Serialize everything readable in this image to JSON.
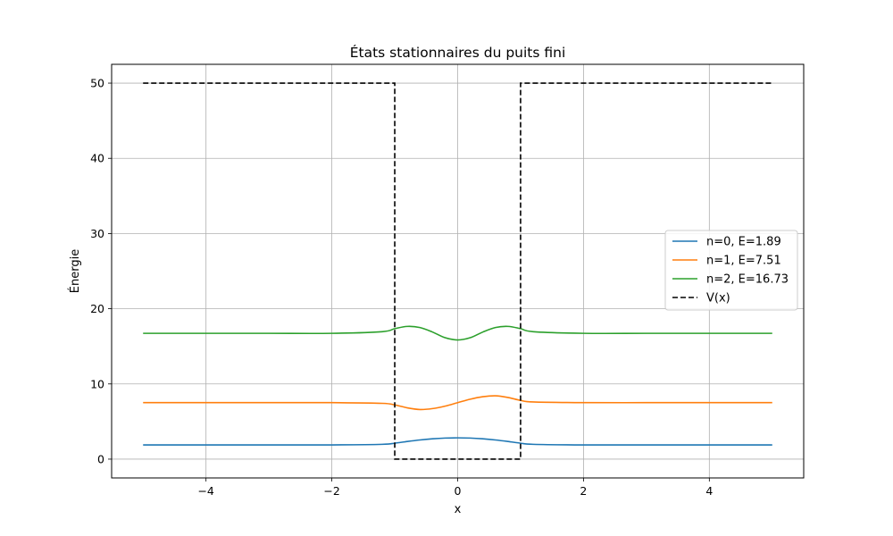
{
  "chart_data": {
    "type": "line",
    "title": "États stationnaires du puits fini",
    "xlabel": "x",
    "ylabel": "Énergie",
    "xlim": [
      -5.5,
      5.5
    ],
    "ylim": [
      -2.5,
      52.5
    ],
    "xticks": [
      -4,
      -2,
      0,
      2,
      4
    ],
    "xtick_labels": [
      "−4",
      "−2",
      "0",
      "2",
      "4"
    ],
    "yticks": [
      0,
      10,
      20,
      30,
      40,
      50
    ],
    "ytick_labels": [
      "0",
      "10",
      "20",
      "30",
      "40",
      "50"
    ],
    "grid": true,
    "legend_position": "center-right",
    "series": [
      {
        "name": "n=0, E=1.89",
        "color": "#1f77b4",
        "style": "solid",
        "x": [
          -5,
          -4,
          -3,
          -2,
          -1.2,
          -1.0,
          -0.8,
          -0.6,
          -0.4,
          -0.2,
          0,
          0.2,
          0.4,
          0.6,
          0.8,
          1.0,
          1.2,
          2,
          3,
          4,
          5
        ],
        "y": [
          1.89,
          1.89,
          1.89,
          1.89,
          1.97,
          2.12,
          2.35,
          2.55,
          2.7,
          2.8,
          2.83,
          2.8,
          2.7,
          2.55,
          2.35,
          2.12,
          1.97,
          1.89,
          1.89,
          1.89,
          1.89
        ]
      },
      {
        "name": "n=1, E=7.51",
        "color": "#ff7f0e",
        "style": "solid",
        "x": [
          -5,
          -4,
          -3,
          -2,
          -1.2,
          -1.0,
          -0.8,
          -0.6,
          -0.4,
          -0.2,
          0,
          0.2,
          0.4,
          0.6,
          0.8,
          1.0,
          1.2,
          2,
          3,
          4,
          5
        ],
        "y": [
          7.51,
          7.51,
          7.51,
          7.51,
          7.42,
          7.21,
          6.82,
          6.6,
          6.72,
          7.05,
          7.51,
          7.97,
          8.3,
          8.42,
          8.2,
          7.81,
          7.6,
          7.51,
          7.51,
          7.51,
          7.51
        ]
      },
      {
        "name": "n=2, E=16.73",
        "color": "#2ca02c",
        "style": "solid",
        "x": [
          -5,
          -4,
          -3,
          -2,
          -1.2,
          -1.0,
          -0.8,
          -0.6,
          -0.4,
          -0.2,
          0,
          0.2,
          0.4,
          0.6,
          0.8,
          1.0,
          1.2,
          2,
          3,
          4,
          5
        ],
        "y": [
          16.73,
          16.73,
          16.73,
          16.73,
          16.95,
          17.35,
          17.65,
          17.5,
          16.9,
          16.15,
          15.85,
          16.15,
          16.9,
          17.5,
          17.65,
          17.35,
          16.95,
          16.73,
          16.73,
          16.73,
          16.73
        ]
      },
      {
        "name": "V(x)",
        "color": "#000000",
        "style": "dashed",
        "x": [
          -5,
          -1,
          -1,
          1,
          1,
          5
        ],
        "y": [
          50,
          50,
          0,
          0,
          50,
          50
        ]
      }
    ]
  }
}
